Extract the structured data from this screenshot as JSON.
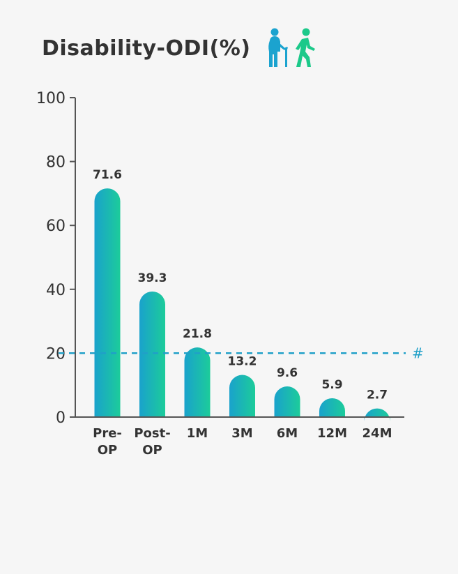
{
  "colors": {
    "background": "#f6f6f6",
    "text": "#333333",
    "bar_start": "#1aa2cc",
    "bar_end": "#1ccc9a",
    "reference_line": "#20a0c8",
    "icon_elderly": "#1ba3cf",
    "icon_walking": "#1cc98a"
  },
  "icons": [
    "elderly-with-cane-icon",
    "walking-person-icon"
  ],
  "chart_data": {
    "type": "bar",
    "title": "Disability-ODI(%)",
    "categories": [
      [
        "Pre-",
        "OP"
      ],
      [
        "Post-",
        "OP"
      ],
      [
        "1M"
      ],
      [
        "3M"
      ],
      [
        "6M"
      ],
      [
        "12M"
      ],
      [
        "24M"
      ]
    ],
    "values": [
      71.6,
      39.3,
      21.8,
      13.2,
      9.6,
      5.9,
      2.7
    ],
    "value_labels": [
      "71.6",
      "39.3",
      "21.8",
      "13.2",
      "9.6",
      "5.9",
      "2.7"
    ],
    "ylim": [
      0,
      100
    ],
    "yticks": [
      "0",
      "20",
      "40",
      "60",
      "80",
      "100"
    ],
    "xlabel": "",
    "ylabel": "",
    "grid": false,
    "reference_line": {
      "value": 20,
      "style": "dashed",
      "label": "#"
    }
  }
}
